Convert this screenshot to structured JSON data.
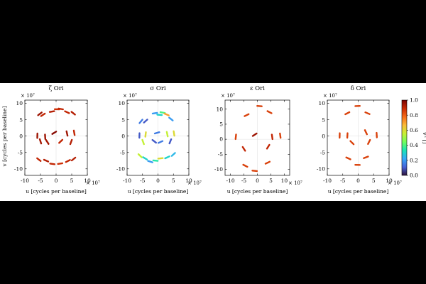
{
  "figure": {
    "ylabel": "v [cycles per baseline]",
    "colorbar": {
      "label": "V² []",
      "ticks": [
        "1.0",
        "0.8",
        "0.6",
        "0.4",
        "0.2",
        "0.0"
      ],
      "colors": [
        "#30123b",
        "#4662d7",
        "#36aaf9",
        "#1ae4b6",
        "#72fe5e",
        "#c8ef34",
        "#faba39",
        "#f66b19",
        "#ca2a04",
        "#7a0403"
      ]
    }
  },
  "chart_data": [
    {
      "type": "scatter",
      "title": "ζ Ori",
      "xlabel": "u [cycles per baseline]",
      "ylabel": "v [cycles per baseline]",
      "exponent": "× 10⁷",
      "xlim": [
        -10,
        10
      ],
      "ylim": [
        -12,
        11
      ],
      "x_ticks": [
        "-10",
        "-5",
        "0",
        "5",
        "10"
      ],
      "y_ticks": [
        "10",
        "5",
        "0",
        "-5",
        "-10"
      ],
      "grid": true,
      "points": [
        {
          "x": -5.2,
          "y": 6.8,
          "v2": 0.95
        },
        {
          "x": -4.2,
          "y": 6.5,
          "v2": 0.9
        },
        {
          "x": -1.3,
          "y": 7.5,
          "v2": 0.92
        },
        {
          "x": 0.3,
          "y": 8.2,
          "v2": 0.88
        },
        {
          "x": 1.5,
          "y": 8.3,
          "v2": 0.9
        },
        {
          "x": 3.5,
          "y": 7.3,
          "v2": 0.9
        },
        {
          "x": 5.5,
          "y": 7.0,
          "v2": 0.92
        },
        {
          "x": -6.0,
          "y": 0.1,
          "v2": 0.95
        },
        {
          "x": -3.5,
          "y": -0.2,
          "v2": 0.95
        },
        {
          "x": -0.6,
          "y": 1.0,
          "v2": 0.98
        },
        {
          "x": 3.5,
          "y": 0.8,
          "v2": 0.95
        },
        {
          "x": 5.8,
          "y": 1.0,
          "v2": 0.9
        },
        {
          "x": -5.0,
          "y": -1.6,
          "v2": 0.94
        },
        {
          "x": -2.8,
          "y": -1.8,
          "v2": 0.94
        },
        {
          "x": 1.5,
          "y": -1.6,
          "v2": 0.9
        },
        {
          "x": 4.8,
          "y": -1.8,
          "v2": 0.92
        },
        {
          "x": -5.5,
          "y": -7.2,
          "v2": 0.9
        },
        {
          "x": -3.2,
          "y": -7.5,
          "v2": 0.92
        },
        {
          "x": -1.2,
          "y": -8.5,
          "v2": 0.9
        },
        {
          "x": 1.3,
          "y": -8.4,
          "v2": 0.88
        },
        {
          "x": 3.8,
          "y": -7.6,
          "v2": 0.9
        },
        {
          "x": 5.6,
          "y": -7.0,
          "v2": 0.92
        }
      ]
    },
    {
      "type": "scatter",
      "title": "σ Ori",
      "xlabel": "u [cycles per baseline]",
      "exponent": "× 10⁷",
      "xlim": [
        -10,
        10
      ],
      "ylim": [
        -12,
        11
      ],
      "x_ticks": [
        "-10",
        "-5",
        "0",
        "5",
        "10"
      ],
      "y_ticks": [
        "10",
        "5",
        "0",
        "-5",
        "-10"
      ],
      "grid": true,
      "points": [
        {
          "x": -5.5,
          "y": 4.5,
          "v2": 0.15
        },
        {
          "x": -4.0,
          "y": 4.6,
          "v2": 0.1
        },
        {
          "x": -1.0,
          "y": 7.0,
          "v2": 0.2
        },
        {
          "x": 0.5,
          "y": 6.5,
          "v2": 0.3
        },
        {
          "x": 1.5,
          "y": 7.2,
          "v2": 0.4
        },
        {
          "x": 2.8,
          "y": 6.6,
          "v2": 0.7
        },
        {
          "x": 4.2,
          "y": 5.2,
          "v2": 0.2
        },
        {
          "x": -6.0,
          "y": 0.2,
          "v2": 0.1
        },
        {
          "x": -4.0,
          "y": 0.5,
          "v2": 0.6
        },
        {
          "x": -0.3,
          "y": 1.0,
          "v2": 0.15
        },
        {
          "x": 3.0,
          "y": 0.6,
          "v2": 0.55
        },
        {
          "x": 5.2,
          "y": 0.8,
          "v2": 0.6
        },
        {
          "x": -4.8,
          "y": -1.8,
          "v2": 0.55
        },
        {
          "x": -1.2,
          "y": -1.6,
          "v2": 0.1
        },
        {
          "x": 0.8,
          "y": -1.8,
          "v2": 0.15
        },
        {
          "x": 4.0,
          "y": -1.6,
          "v2": 0.1
        },
        {
          "x": -5.8,
          "y": -6.0,
          "v2": 0.55
        },
        {
          "x": -4.2,
          "y": -6.8,
          "v2": 0.3
        },
        {
          "x": -2.5,
          "y": -7.8,
          "v2": 0.2
        },
        {
          "x": -0.8,
          "y": -7.5,
          "v2": 0.35
        },
        {
          "x": 0.8,
          "y": -6.8,
          "v2": 0.6
        },
        {
          "x": 3.0,
          "y": -6.5,
          "v2": 0.3
        },
        {
          "x": 5.0,
          "y": -5.6,
          "v2": 0.25
        }
      ]
    },
    {
      "type": "scatter",
      "title": "ε Ori",
      "xlabel": "u [cycles per baseline]",
      "exponent": "× 10⁷",
      "xlim": [
        -12,
        12
      ],
      "ylim": [
        -12,
        13
      ],
      "x_ticks": [
        "-10",
        "-5",
        "0",
        "5",
        "10"
      ],
      "y_ticks": [
        "10",
        "5",
        "0",
        "-5",
        "-10"
      ],
      "grid": true,
      "points": [
        {
          "x": -4.0,
          "y": 8.0,
          "v2": 0.85
        },
        {
          "x": 0.8,
          "y": 11.0,
          "v2": 0.85
        },
        {
          "x": 4.5,
          "y": 9.0,
          "v2": 0.85
        },
        {
          "x": -8.0,
          "y": 0.8,
          "v2": 0.85
        },
        {
          "x": -1.0,
          "y": 1.5,
          "v2": 0.95
        },
        {
          "x": 5.5,
          "y": 0.8,
          "v2": 0.9
        },
        {
          "x": 8.5,
          "y": 1.2,
          "v2": 0.85
        },
        {
          "x": -5.0,
          "y": -3.2,
          "v2": 0.9
        },
        {
          "x": 4.0,
          "y": -2.5,
          "v2": 0.9
        },
        {
          "x": -4.5,
          "y": -8.8,
          "v2": 0.85
        },
        {
          "x": -1.0,
          "y": -10.5,
          "v2": 0.85
        },
        {
          "x": 3.8,
          "y": -7.8,
          "v2": 0.85
        }
      ]
    },
    {
      "type": "scatter",
      "title": "δ Ori",
      "xlabel": "u [cycles per baseline]",
      "exponent": "× 10⁷",
      "xlim": [
        -10,
        10
      ],
      "ylim": [
        -12,
        11
      ],
      "x_ticks": [
        "-10",
        "-5",
        "0",
        "5",
        "10"
      ],
      "y_ticks": [
        "10",
        "5",
        "0",
        "-5",
        "-10"
      ],
      "grid": true,
      "points": [
        {
          "x": -3.5,
          "y": 7.0,
          "v2": 0.85
        },
        {
          "x": -0.2,
          "y": 9.2,
          "v2": 0.85
        },
        {
          "x": 3.0,
          "y": 7.0,
          "v2": 0.85
        },
        {
          "x": -6.0,
          "y": 0.2,
          "v2": 0.85
        },
        {
          "x": -3.5,
          "y": 0.2,
          "v2": 0.85
        },
        {
          "x": 2.5,
          "y": 1.2,
          "v2": 0.85
        },
        {
          "x": 6.0,
          "y": 0.3,
          "v2": 0.85
        },
        {
          "x": -2.0,
          "y": -2.0,
          "v2": 0.85
        },
        {
          "x": 3.5,
          "y": -1.8,
          "v2": 0.85
        },
        {
          "x": -3.2,
          "y": -6.8,
          "v2": 0.85
        },
        {
          "x": -0.2,
          "y": -8.8,
          "v2": 0.85
        },
        {
          "x": 2.5,
          "y": -6.5,
          "v2": 0.85
        }
      ]
    }
  ]
}
